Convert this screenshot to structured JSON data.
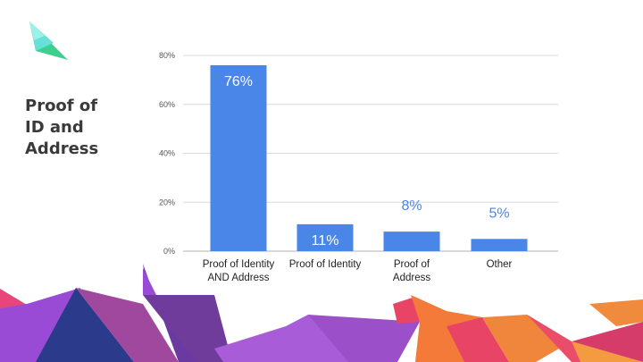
{
  "slide": {
    "title_lines": [
      "Proof of",
      "ID and",
      "Address"
    ]
  },
  "colors": {
    "bar": "#4a86e8",
    "grid": "#d9d9d9",
    "axis": "#b0b0b0"
  },
  "chart_data": {
    "type": "bar",
    "title": "",
    "xlabel": "",
    "ylabel": "",
    "ylim": [
      0,
      80
    ],
    "yticks": [
      0,
      20,
      40,
      60,
      80
    ],
    "ytick_labels": [
      "0%",
      "20%",
      "40%",
      "60%",
      "80%"
    ],
    "categories": [
      [
        "Proof of Identity",
        "AND Address"
      ],
      [
        "Proof of Identity"
      ],
      [
        "Proof of",
        "Address"
      ],
      [
        "Other"
      ]
    ],
    "values": [
      76,
      11,
      8,
      5
    ],
    "data_labels": [
      "76%",
      "11%",
      "8%",
      "5%"
    ],
    "data_label_inside": [
      true,
      true,
      false,
      false
    ],
    "grid": true,
    "legend": "none"
  }
}
